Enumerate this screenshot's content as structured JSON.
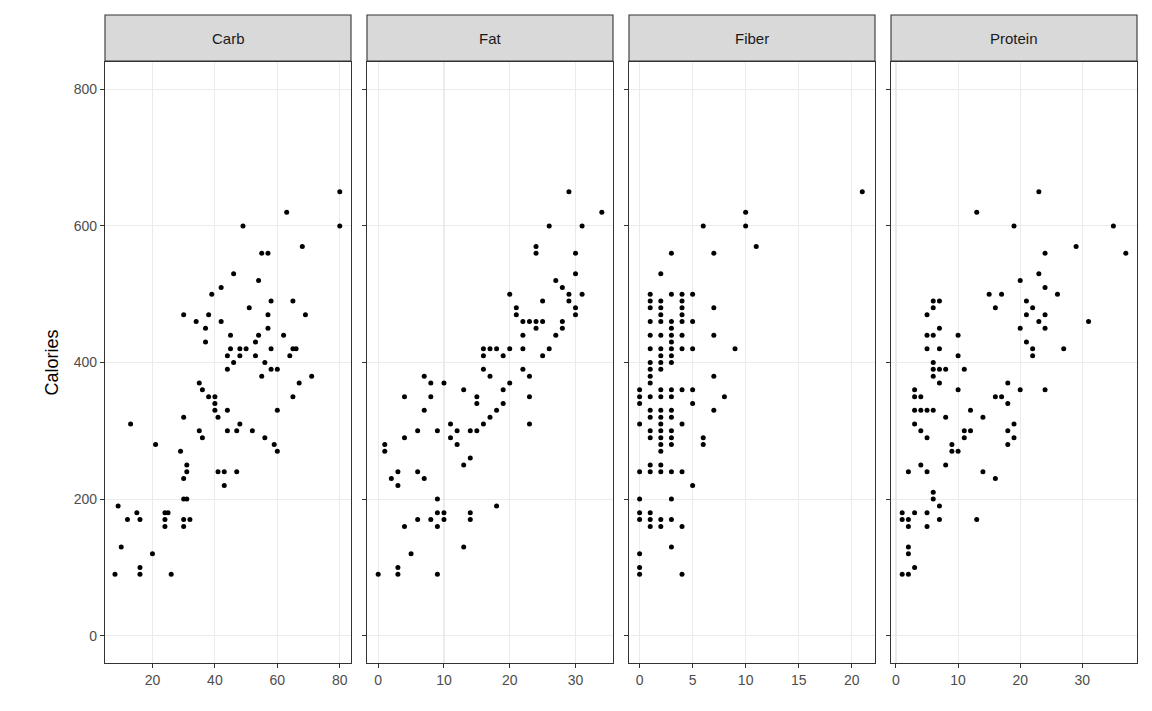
{
  "chart_data": [
    {
      "type": "scatter",
      "title": "Carb",
      "y_label": "Calories",
      "color": "#000000",
      "grid": true,
      "x": [
        9,
        10,
        8,
        12,
        13,
        15,
        16,
        16,
        16,
        20,
        21,
        24,
        25,
        24,
        24,
        26,
        29,
        30,
        30,
        31,
        30,
        31,
        31,
        30,
        30,
        32,
        30,
        34,
        35,
        36,
        35,
        36,
        37,
        37,
        38,
        38,
        39,
        40,
        40,
        40,
        41,
        42,
        42,
        41,
        43,
        43,
        44,
        44,
        44,
        44,
        45,
        45,
        46,
        46,
        47,
        47,
        48,
        48,
        49,
        48,
        50,
        51,
        52,
        53,
        53,
        54,
        54,
        55,
        55,
        56,
        56,
        57,
        57,
        57,
        58,
        58,
        58,
        59,
        60,
        60,
        60,
        62,
        63,
        64,
        65,
        65,
        65,
        66,
        67,
        68,
        69,
        71,
        80,
        80
      ],
      "values": [
        190,
        130,
        90,
        170,
        310,
        180,
        170,
        100,
        90,
        120,
        280,
        180,
        180,
        170,
        160,
        90,
        270,
        200,
        170,
        200,
        230,
        240,
        250,
        320,
        160,
        170,
        470,
        460,
        370,
        360,
        300,
        290,
        450,
        430,
        470,
        350,
        500,
        350,
        340,
        330,
        320,
        510,
        460,
        240,
        240,
        220,
        300,
        330,
        390,
        410,
        420,
        440,
        400,
        530,
        240,
        300,
        410,
        420,
        600,
        310,
        420,
        480,
        300,
        410,
        430,
        440,
        520,
        560,
        380,
        400,
        290,
        450,
        470,
        560,
        490,
        420,
        390,
        280,
        270,
        330,
        390,
        440,
        620,
        410,
        420,
        490,
        350,
        420,
        370,
        570,
        470,
        380,
        600,
        650
      ],
      "xlim": [
        4.8,
        83.6
      ],
      "xticks": [
        20,
        40,
        60,
        80
      ],
      "ylim": [
        -40,
        840
      ],
      "yticks": [
        0,
        200,
        400,
        600,
        800
      ]
    },
    {
      "type": "scatter",
      "title": "Fat",
      "color": "#000000",
      "grid": true,
      "tick_labels": "x",
      "x": [
        0,
        1,
        1,
        2,
        3,
        3,
        3,
        3,
        4,
        4,
        4,
        5,
        6,
        6,
        6,
        7,
        7,
        7,
        8,
        8,
        8,
        9,
        9,
        9,
        9,
        9,
        10,
        10,
        10,
        11,
        11,
        12,
        12,
        13,
        13,
        13,
        14,
        14,
        14,
        14,
        15,
        15,
        15,
        16,
        16,
        16,
        16,
        17,
        17,
        17,
        18,
        18,
        18,
        19,
        19,
        19,
        20,
        20,
        20,
        21,
        21,
        22,
        22,
        22,
        22,
        23,
        23,
        23,
        23,
        24,
        24,
        24,
        24,
        25,
        25,
        25,
        26,
        26,
        27,
        27,
        28,
        28,
        28,
        29,
        29,
        30,
        30,
        30,
        30,
        29,
        31,
        31,
        34
      ],
      "values": [
        90,
        270,
        280,
        230,
        240,
        220,
        90,
        100,
        290,
        160,
        350,
        120,
        300,
        240,
        170,
        230,
        330,
        380,
        370,
        350,
        170,
        160,
        180,
        200,
        300,
        90,
        170,
        180,
        370,
        290,
        310,
        300,
        280,
        360,
        250,
        130,
        260,
        300,
        170,
        180,
        300,
        340,
        350,
        410,
        420,
        390,
        310,
        380,
        320,
        420,
        330,
        420,
        190,
        410,
        340,
        360,
        370,
        500,
        420,
        470,
        480,
        420,
        460,
        390,
        440,
        310,
        350,
        460,
        380,
        450,
        460,
        570,
        560,
        490,
        410,
        460,
        420,
        600,
        440,
        520,
        460,
        510,
        450,
        500,
        490,
        470,
        480,
        530,
        560,
        650,
        500,
        600,
        620
      ],
      "xlim": [
        -1.7,
        35.7
      ],
      "xticks": [
        0,
        10,
        20,
        30
      ],
      "ylim": [
        -40,
        840
      ],
      "yticks": [
        0,
        200,
        400,
        600,
        800
      ]
    },
    {
      "type": "scatter",
      "title": "Fiber",
      "color": "#000000",
      "grid": true,
      "tick_labels": "x",
      "x": [
        0,
        0,
        0,
        0,
        0,
        0,
        0,
        0,
        0,
        0,
        0,
        1,
        1,
        1,
        1,
        1,
        1,
        1,
        1,
        1,
        1,
        1,
        1,
        1,
        1,
        1,
        1,
        1,
        1,
        1,
        1,
        2,
        2,
        2,
        2,
        2,
        2,
        2,
        2,
        2,
        2,
        2,
        2,
        2,
        2,
        2,
        2,
        2,
        2,
        2,
        2,
        2,
        2,
        2,
        3,
        3,
        3,
        3,
        3,
        3,
        3,
        3,
        3,
        3,
        3,
        3,
        3,
        3,
        3,
        3,
        3,
        3,
        3,
        3,
        4,
        4,
        4,
        4,
        4,
        4,
        4,
        4,
        4,
        4,
        4,
        4,
        5,
        5,
        5,
        5,
        5,
        5,
        6,
        6,
        6,
        7,
        7,
        7,
        7,
        7,
        8,
        9,
        10,
        10,
        11,
        21
      ],
      "values": [
        90,
        100,
        120,
        170,
        180,
        200,
        240,
        310,
        340,
        350,
        360,
        160,
        170,
        180,
        240,
        250,
        290,
        300,
        320,
        330,
        350,
        370,
        380,
        390,
        400,
        420,
        440,
        460,
        480,
        490,
        500,
        160,
        170,
        240,
        250,
        270,
        280,
        290,
        300,
        310,
        320,
        330,
        350,
        360,
        390,
        400,
        410,
        420,
        440,
        460,
        470,
        480,
        490,
        530,
        130,
        170,
        200,
        240,
        280,
        290,
        300,
        320,
        330,
        350,
        360,
        400,
        410,
        420,
        430,
        440,
        450,
        460,
        500,
        560,
        90,
        160,
        240,
        310,
        360,
        420,
        440,
        460,
        470,
        480,
        490,
        500,
        220,
        340,
        360,
        420,
        460,
        500,
        280,
        290,
        600,
        330,
        380,
        440,
        480,
        560,
        350,
        420,
        600,
        620,
        570,
        650
      ],
      "xlim": [
        -1,
        22.2
      ],
      "xticks": [
        0,
        5,
        10,
        15,
        20
      ],
      "ylim": [
        -40,
        840
      ],
      "yticks": [
        0,
        200,
        400,
        600,
        800
      ]
    },
    {
      "type": "scatter",
      "title": "Protein",
      "color": "#000000",
      "grid": true,
      "tick_labels": "x",
      "x": [
        1,
        1,
        1,
        2,
        2,
        2,
        2,
        2,
        2,
        3,
        3,
        3,
        3,
        3,
        3,
        4,
        4,
        4,
        4,
        5,
        5,
        5,
        5,
        5,
        5,
        5,
        5,
        6,
        6,
        6,
        6,
        6,
        6,
        6,
        6,
        6,
        7,
        7,
        7,
        7,
        7,
        7,
        7,
        8,
        8,
        8,
        9,
        9,
        10,
        10,
        10,
        10,
        11,
        11,
        11,
        12,
        12,
        13,
        13,
        14,
        14,
        15,
        16,
        16,
        16,
        17,
        17,
        18,
        18,
        18,
        18,
        19,
        19,
        19,
        20,
        20,
        20,
        21,
        21,
        21,
        22,
        22,
        22,
        23,
        23,
        23,
        24,
        24,
        24,
        24,
        24,
        26,
        27,
        29,
        31,
        35,
        37
      ],
      "values": [
        90,
        170,
        180,
        160,
        170,
        120,
        130,
        90,
        240,
        180,
        100,
        310,
        330,
        350,
        360,
        250,
        300,
        330,
        350,
        290,
        180,
        160,
        330,
        240,
        420,
        440,
        470,
        200,
        210,
        330,
        380,
        390,
        400,
        440,
        480,
        490,
        170,
        190,
        370,
        390,
        420,
        450,
        490,
        250,
        390,
        320,
        270,
        280,
        270,
        360,
        410,
        440,
        290,
        300,
        390,
        300,
        330,
        170,
        620,
        240,
        320,
        500,
        230,
        350,
        480,
        350,
        500,
        280,
        300,
        340,
        370,
        290,
        310,
        600,
        360,
        450,
        520,
        470,
        430,
        490,
        410,
        420,
        480,
        460,
        530,
        650,
        360,
        450,
        470,
        510,
        560,
        500,
        420,
        570,
        460,
        600,
        560
      ],
      "xlim": [
        -0.8,
        38.8
      ],
      "xticks": [
        0,
        10,
        20,
        30
      ],
      "ylim": [
        -40,
        840
      ],
      "yticks": [
        0,
        200,
        400,
        600,
        800
      ]
    }
  ]
}
